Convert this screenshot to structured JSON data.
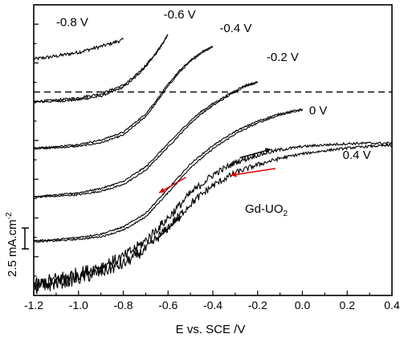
{
  "chart_data": {
    "type": "line",
    "title": "",
    "xlabel": "E vs. SCE /V",
    "ylabel": "2.5 mA.cm",
    "ylabel_superscript": "-2",
    "xlim": [
      -1.2,
      0.4
    ],
    "xticks": [
      -1.2,
      -1.0,
      -0.8,
      -0.6,
      -0.4,
      -0.2,
      0.0,
      0.2,
      0.4
    ],
    "xtick_labels": [
      "-1.2",
      "-1.0",
      "-0.8",
      "-0.6",
      "-0.4",
      "-0.2",
      "0.0",
      "0.2",
      "0.4"
    ],
    "ylim": [
      0,
      15
    ],
    "y_units": "mA.cm-2",
    "scale_bar_value": 2.5,
    "zero_current_reference": 10.5,
    "annotation": {
      "main": "Gd-UO",
      "sub": "2"
    },
    "series": [
      {
        "name": "-0.8 V",
        "start_potential": -0.8,
        "x": [
          -1.2,
          -1.1,
          -1.0,
          -0.9,
          -0.8
        ],
        "y": [
          12.2,
          12.35,
          12.55,
          12.85,
          13.2
        ],
        "noise": 0.09
      },
      {
        "name": "-0.6 V",
        "start_potential": -0.6,
        "x": [
          -1.2,
          -1.1,
          -1.0,
          -0.9,
          -0.8,
          -0.75,
          -0.7,
          -0.65,
          -0.6
        ],
        "y": [
          10.0,
          10.05,
          10.15,
          10.35,
          10.8,
          11.25,
          11.85,
          12.55,
          13.45
        ],
        "noise": 0.06,
        "loop": 0.12
      },
      {
        "name": "-0.4 V",
        "start_potential": -0.4,
        "x": [
          -1.2,
          -1.1,
          -1.0,
          -0.9,
          -0.8,
          -0.7,
          -0.65,
          -0.6,
          -0.55,
          -0.5,
          -0.45,
          -0.4
        ],
        "y": [
          7.6,
          7.65,
          7.75,
          7.95,
          8.35,
          9.3,
          10.05,
          10.85,
          11.55,
          12.1,
          12.55,
          12.85
        ],
        "noise": 0.04,
        "loop": 0.15
      },
      {
        "name": "-0.2 V",
        "start_potential": -0.2,
        "x": [
          -1.2,
          -1.1,
          -1.0,
          -0.9,
          -0.8,
          -0.7,
          -0.6,
          -0.5,
          -0.45,
          -0.4,
          -0.35,
          -0.3,
          -0.25,
          -0.2
        ],
        "y": [
          5.1,
          5.15,
          5.25,
          5.45,
          5.8,
          6.55,
          7.75,
          8.95,
          9.45,
          9.85,
          10.2,
          10.55,
          10.85,
          11.0
        ],
        "noise": 0.04,
        "loop": 0.18
      },
      {
        "name": "0 V",
        "start_potential": 0.0,
        "x": [
          -1.2,
          -1.1,
          -1.0,
          -0.9,
          -0.8,
          -0.7,
          -0.6,
          -0.5,
          -0.4,
          -0.3,
          -0.2,
          -0.1,
          0.0
        ],
        "y": [
          2.8,
          2.85,
          2.95,
          3.1,
          3.45,
          4.15,
          5.4,
          6.7,
          7.65,
          8.4,
          8.95,
          9.35,
          9.6
        ],
        "noise": 0.04,
        "loop": 0.2
      },
      {
        "name": "0.4 V",
        "start_potential": 0.4,
        "x": [
          -1.2,
          -1.1,
          -1.0,
          -0.9,
          -0.8,
          -0.7,
          -0.6,
          -0.5,
          -0.4,
          -0.3,
          -0.2,
          -0.1,
          0.0,
          0.1,
          0.2,
          0.3,
          0.4
        ],
        "y": [
          0.4,
          0.75,
          1.0,
          1.35,
          1.8,
          2.6,
          3.75,
          5.0,
          5.95,
          6.6,
          7.0,
          7.3,
          7.5,
          7.62,
          7.72,
          7.78,
          7.8
        ],
        "noise": 0.42,
        "loop": 0.55
      }
    ],
    "arrows": [
      {
        "color": "#000000",
        "x_from": -0.28,
        "x_to": -0.14,
        "y_from": 7.1,
        "y_to": 7.55
      },
      {
        "color": "#e00000",
        "x_from": -0.12,
        "x_to": -0.32,
        "y_from": 6.55,
        "y_to": 6.2
      },
      {
        "color": "#e00000",
        "x_from": -0.52,
        "x_to": -0.64,
        "y_from": 6.1,
        "y_to": 5.3
      },
      {
        "color": "#000000",
        "x_from": -0.65,
        "x_to": -0.54,
        "y_from": 2.9,
        "y_to": 4.1
      }
    ],
    "grid": false,
    "legend": "none"
  },
  "colors": {
    "axis": "#000000",
    "curve": "#000000",
    "arrow_red": "#e00000"
  }
}
